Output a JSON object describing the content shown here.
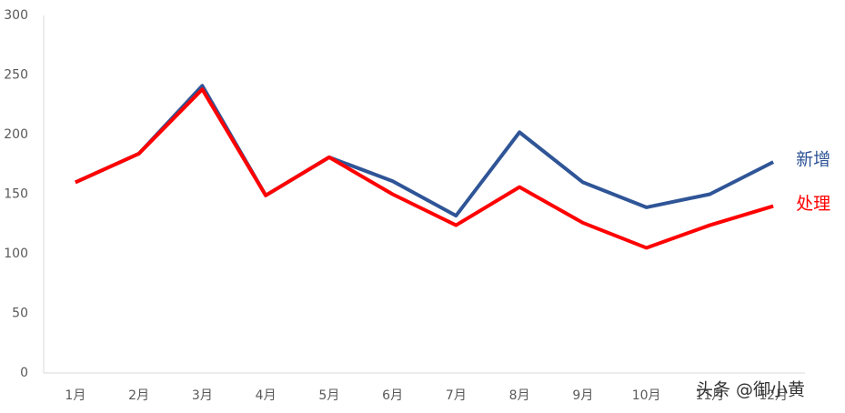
{
  "chart_data": {
    "type": "line",
    "categories": [
      "1月",
      "2月",
      "3月",
      "4月",
      "5月",
      "6月",
      "7月",
      "8月",
      "9月",
      "10月",
      "11月",
      "12月"
    ],
    "series": [
      {
        "name": "新增",
        "color": "#2f5597",
        "values": [
          160,
          184,
          241,
          149,
          181,
          161,
          132,
          202,
          160,
          139,
          150,
          177
        ]
      },
      {
        "name": "处理",
        "color": "#ff0000",
        "values": [
          160,
          184,
          238,
          149,
          181,
          150,
          124,
          156,
          126,
          105,
          124,
          140
        ]
      }
    ],
    "ylim": [
      0,
      300
    ],
    "yticks": [
      0,
      50,
      100,
      150,
      200,
      250,
      300
    ],
    "grid": false,
    "watermark": "头条 @御小黄"
  }
}
